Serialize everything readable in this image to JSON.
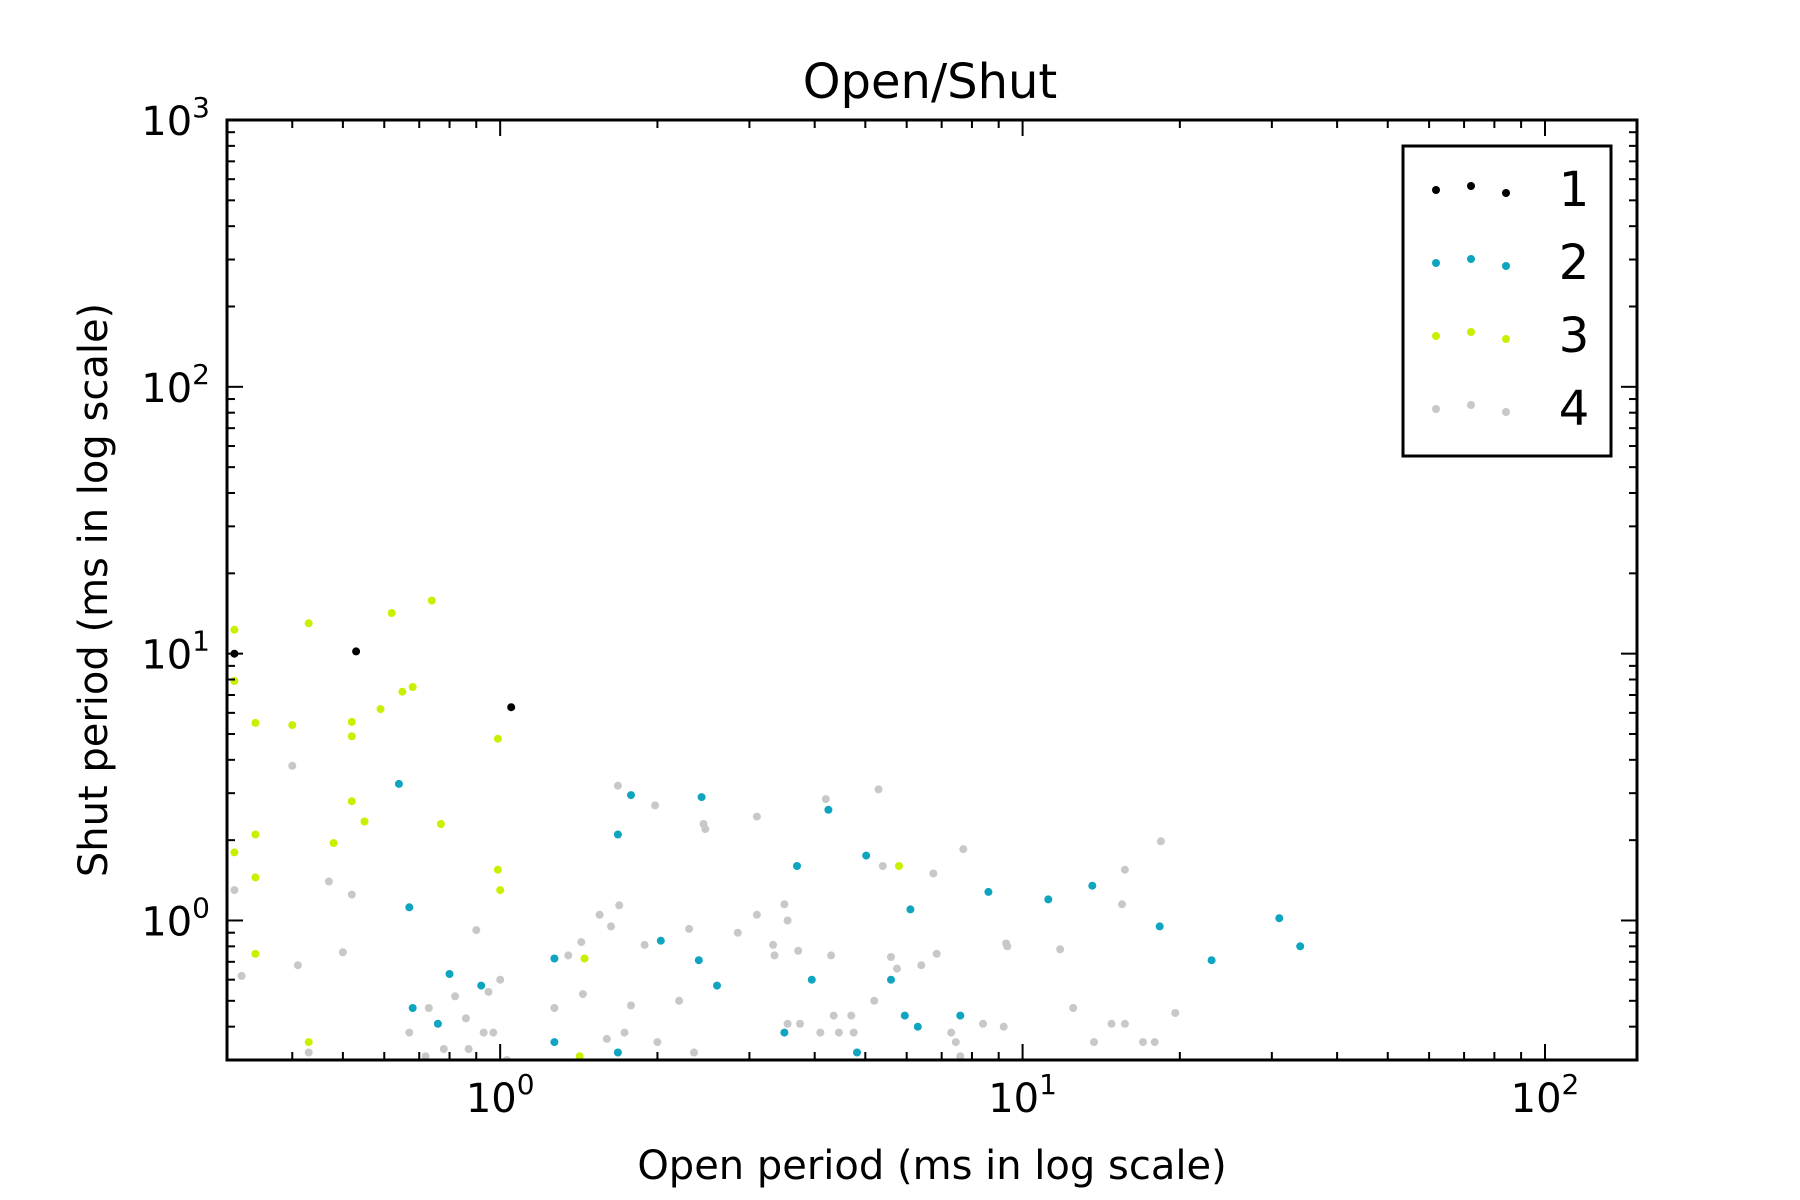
{
  "chart_data": {
    "type": "scatter",
    "title": "Open/Shut",
    "xlabel": "Open period (ms in log scale)",
    "ylabel": "Shut period (ms in log scale)",
    "x_scale": "log",
    "y_scale": "log",
    "xlim": [
      0.3,
      150
    ],
    "ylim": [
      0.3,
      1000
    ],
    "x_ticks": [
      {
        "value": 1,
        "base": "10",
        "exp": "0"
      },
      {
        "value": 10,
        "base": "10",
        "exp": "1"
      },
      {
        "value": 100,
        "base": "10",
        "exp": "2"
      }
    ],
    "y_ticks": [
      {
        "value": 1,
        "base": "10",
        "exp": "0"
      },
      {
        "value": 10,
        "base": "10",
        "exp": "1"
      },
      {
        "value": 100,
        "base": "10",
        "exp": "2"
      },
      {
        "value": 1000,
        "base": "10",
        "exp": "3"
      }
    ],
    "grid": false,
    "legend_position": "top-right",
    "series": [
      {
        "name": "1",
        "color": "#000000",
        "points": [
          [
            0.31,
            10.0
          ],
          [
            0.53,
            10.2
          ],
          [
            1.05,
            6.3
          ]
        ]
      },
      {
        "name": "2",
        "color": "#0fa4bf",
        "points": [
          [
            0.64,
            3.25
          ],
          [
            0.67,
            1.12
          ],
          [
            0.68,
            0.47
          ],
          [
            0.76,
            0.41
          ],
          [
            0.8,
            0.63
          ],
          [
            0.92,
            0.57
          ],
          [
            1.27,
            0.72
          ],
          [
            1.27,
            0.35
          ],
          [
            1.68,
            2.1
          ],
          [
            1.78,
            2.95
          ],
          [
            1.68,
            0.32
          ],
          [
            2.03,
            0.84
          ],
          [
            2.43,
            2.9
          ],
          [
            2.4,
            0.71
          ],
          [
            2.6,
            0.57
          ],
          [
            3.5,
            0.38
          ],
          [
            3.7,
            1.6
          ],
          [
            3.95,
            0.6
          ],
          [
            4.25,
            2.6
          ],
          [
            4.82,
            0.32
          ],
          [
            5.02,
            1.75
          ],
          [
            6.1,
            1.1
          ],
          [
            5.95,
            0.44
          ],
          [
            6.3,
            0.4
          ],
          [
            7.6,
            0.44
          ],
          [
            8.6,
            1.28
          ],
          [
            11.2,
            1.2
          ],
          [
            13.6,
            1.35
          ],
          [
            18.3,
            0.95
          ],
          [
            23.0,
            0.71
          ],
          [
            31.0,
            1.02
          ],
          [
            34.0,
            0.8
          ],
          [
            10.3,
            0.29
          ],
          [
            16.5,
            0.29
          ],
          [
            5.6,
            0.6
          ]
        ]
      },
      {
        "name": "3",
        "color": "#c8f000",
        "points": [
          [
            0.31,
            12.3
          ],
          [
            0.31,
            7.9
          ],
          [
            0.34,
            5.5
          ],
          [
            0.31,
            1.8
          ],
          [
            0.34,
            2.1
          ],
          [
            0.34,
            1.45
          ],
          [
            0.34,
            0.75
          ],
          [
            0.43,
            13.0
          ],
          [
            0.43,
            0.35
          ],
          [
            0.48,
            1.95
          ],
          [
            0.52,
            5.55
          ],
          [
            0.52,
            4.9
          ],
          [
            0.52,
            2.8
          ],
          [
            0.55,
            2.35
          ],
          [
            0.59,
            6.2
          ],
          [
            0.62,
            14.2
          ],
          [
            0.65,
            7.2
          ],
          [
            0.68,
            7.5
          ],
          [
            0.74,
            15.8
          ],
          [
            0.77,
            2.3
          ],
          [
            0.99,
            4.8
          ],
          [
            0.99,
            1.55
          ],
          [
            1.0,
            1.3
          ],
          [
            1.42,
            0.31
          ],
          [
            1.45,
            0.72
          ],
          [
            5.8,
            1.6
          ],
          [
            0.4,
            5.4
          ]
        ]
      },
      {
        "name": "4",
        "color": "#c8c8c8",
        "points": [
          [
            0.31,
            1.3
          ],
          [
            0.32,
            0.62
          ],
          [
            0.4,
            3.8
          ],
          [
            0.41,
            0.68
          ],
          [
            0.43,
            0.32
          ],
          [
            0.47,
            1.4
          ],
          [
            0.5,
            0.76
          ],
          [
            0.52,
            1.25
          ],
          [
            0.67,
            0.38
          ],
          [
            0.72,
            0.31
          ],
          [
            0.73,
            0.47
          ],
          [
            0.78,
            0.33
          ],
          [
            0.82,
            0.52
          ],
          [
            0.86,
            0.43
          ],
          [
            0.87,
            0.33
          ],
          [
            0.9,
            0.92
          ],
          [
            0.93,
            0.38
          ],
          [
            0.95,
            0.54
          ],
          [
            0.97,
            0.38
          ],
          [
            1.0,
            0.6
          ],
          [
            1.03,
            0.3
          ],
          [
            1.27,
            0.47
          ],
          [
            1.35,
            0.74
          ],
          [
            1.43,
            0.83
          ],
          [
            1.44,
            0.53
          ],
          [
            1.55,
            1.05
          ],
          [
            1.6,
            0.36
          ],
          [
            1.63,
            0.95
          ],
          [
            1.68,
            3.2
          ],
          [
            1.69,
            1.14
          ],
          [
            1.73,
            0.38
          ],
          [
            1.78,
            0.48
          ],
          [
            1.89,
            0.81
          ],
          [
            1.98,
            2.7
          ],
          [
            2.0,
            0.35
          ],
          [
            2.2,
            0.5
          ],
          [
            2.3,
            0.93
          ],
          [
            2.35,
            0.32
          ],
          [
            2.45,
            2.3
          ],
          [
            2.47,
            2.2
          ],
          [
            2.85,
            0.9
          ],
          [
            3.1,
            2.45
          ],
          [
            3.1,
            1.05
          ],
          [
            3.33,
            0.81
          ],
          [
            3.35,
            0.74
          ],
          [
            3.5,
            1.15
          ],
          [
            3.55,
            1.0
          ],
          [
            3.55,
            0.41
          ],
          [
            3.72,
            0.77
          ],
          [
            3.75,
            0.41
          ],
          [
            4.1,
            0.38
          ],
          [
            4.2,
            2.85
          ],
          [
            4.3,
            0.74
          ],
          [
            4.35,
            0.44
          ],
          [
            4.45,
            0.38
          ],
          [
            4.7,
            0.44
          ],
          [
            4.75,
            0.38
          ],
          [
            5.2,
            0.5
          ],
          [
            5.3,
            3.1
          ],
          [
            5.4,
            1.6
          ],
          [
            5.6,
            0.73
          ],
          [
            5.75,
            0.66
          ],
          [
            6.4,
            0.68
          ],
          [
            6.75,
            1.5
          ],
          [
            6.85,
            0.75
          ],
          [
            7.3,
            0.38
          ],
          [
            7.45,
            0.35
          ],
          [
            7.7,
            1.85
          ],
          [
            7.6,
            0.31
          ],
          [
            8.4,
            0.41
          ],
          [
            9.2,
            0.4
          ],
          [
            9.3,
            0.82
          ],
          [
            9.35,
            0.8
          ],
          [
            11.8,
            0.78
          ],
          [
            12.5,
            0.47
          ],
          [
            13.7,
            0.35
          ],
          [
            14.8,
            0.41
          ],
          [
            15.5,
            1.15
          ],
          [
            15.7,
            1.55
          ],
          [
            15.7,
            0.41
          ],
          [
            17.0,
            0.35
          ],
          [
            17.9,
            0.35
          ],
          [
            18.4,
            1.98
          ],
          [
            19.6,
            0.45
          ]
        ]
      }
    ]
  }
}
